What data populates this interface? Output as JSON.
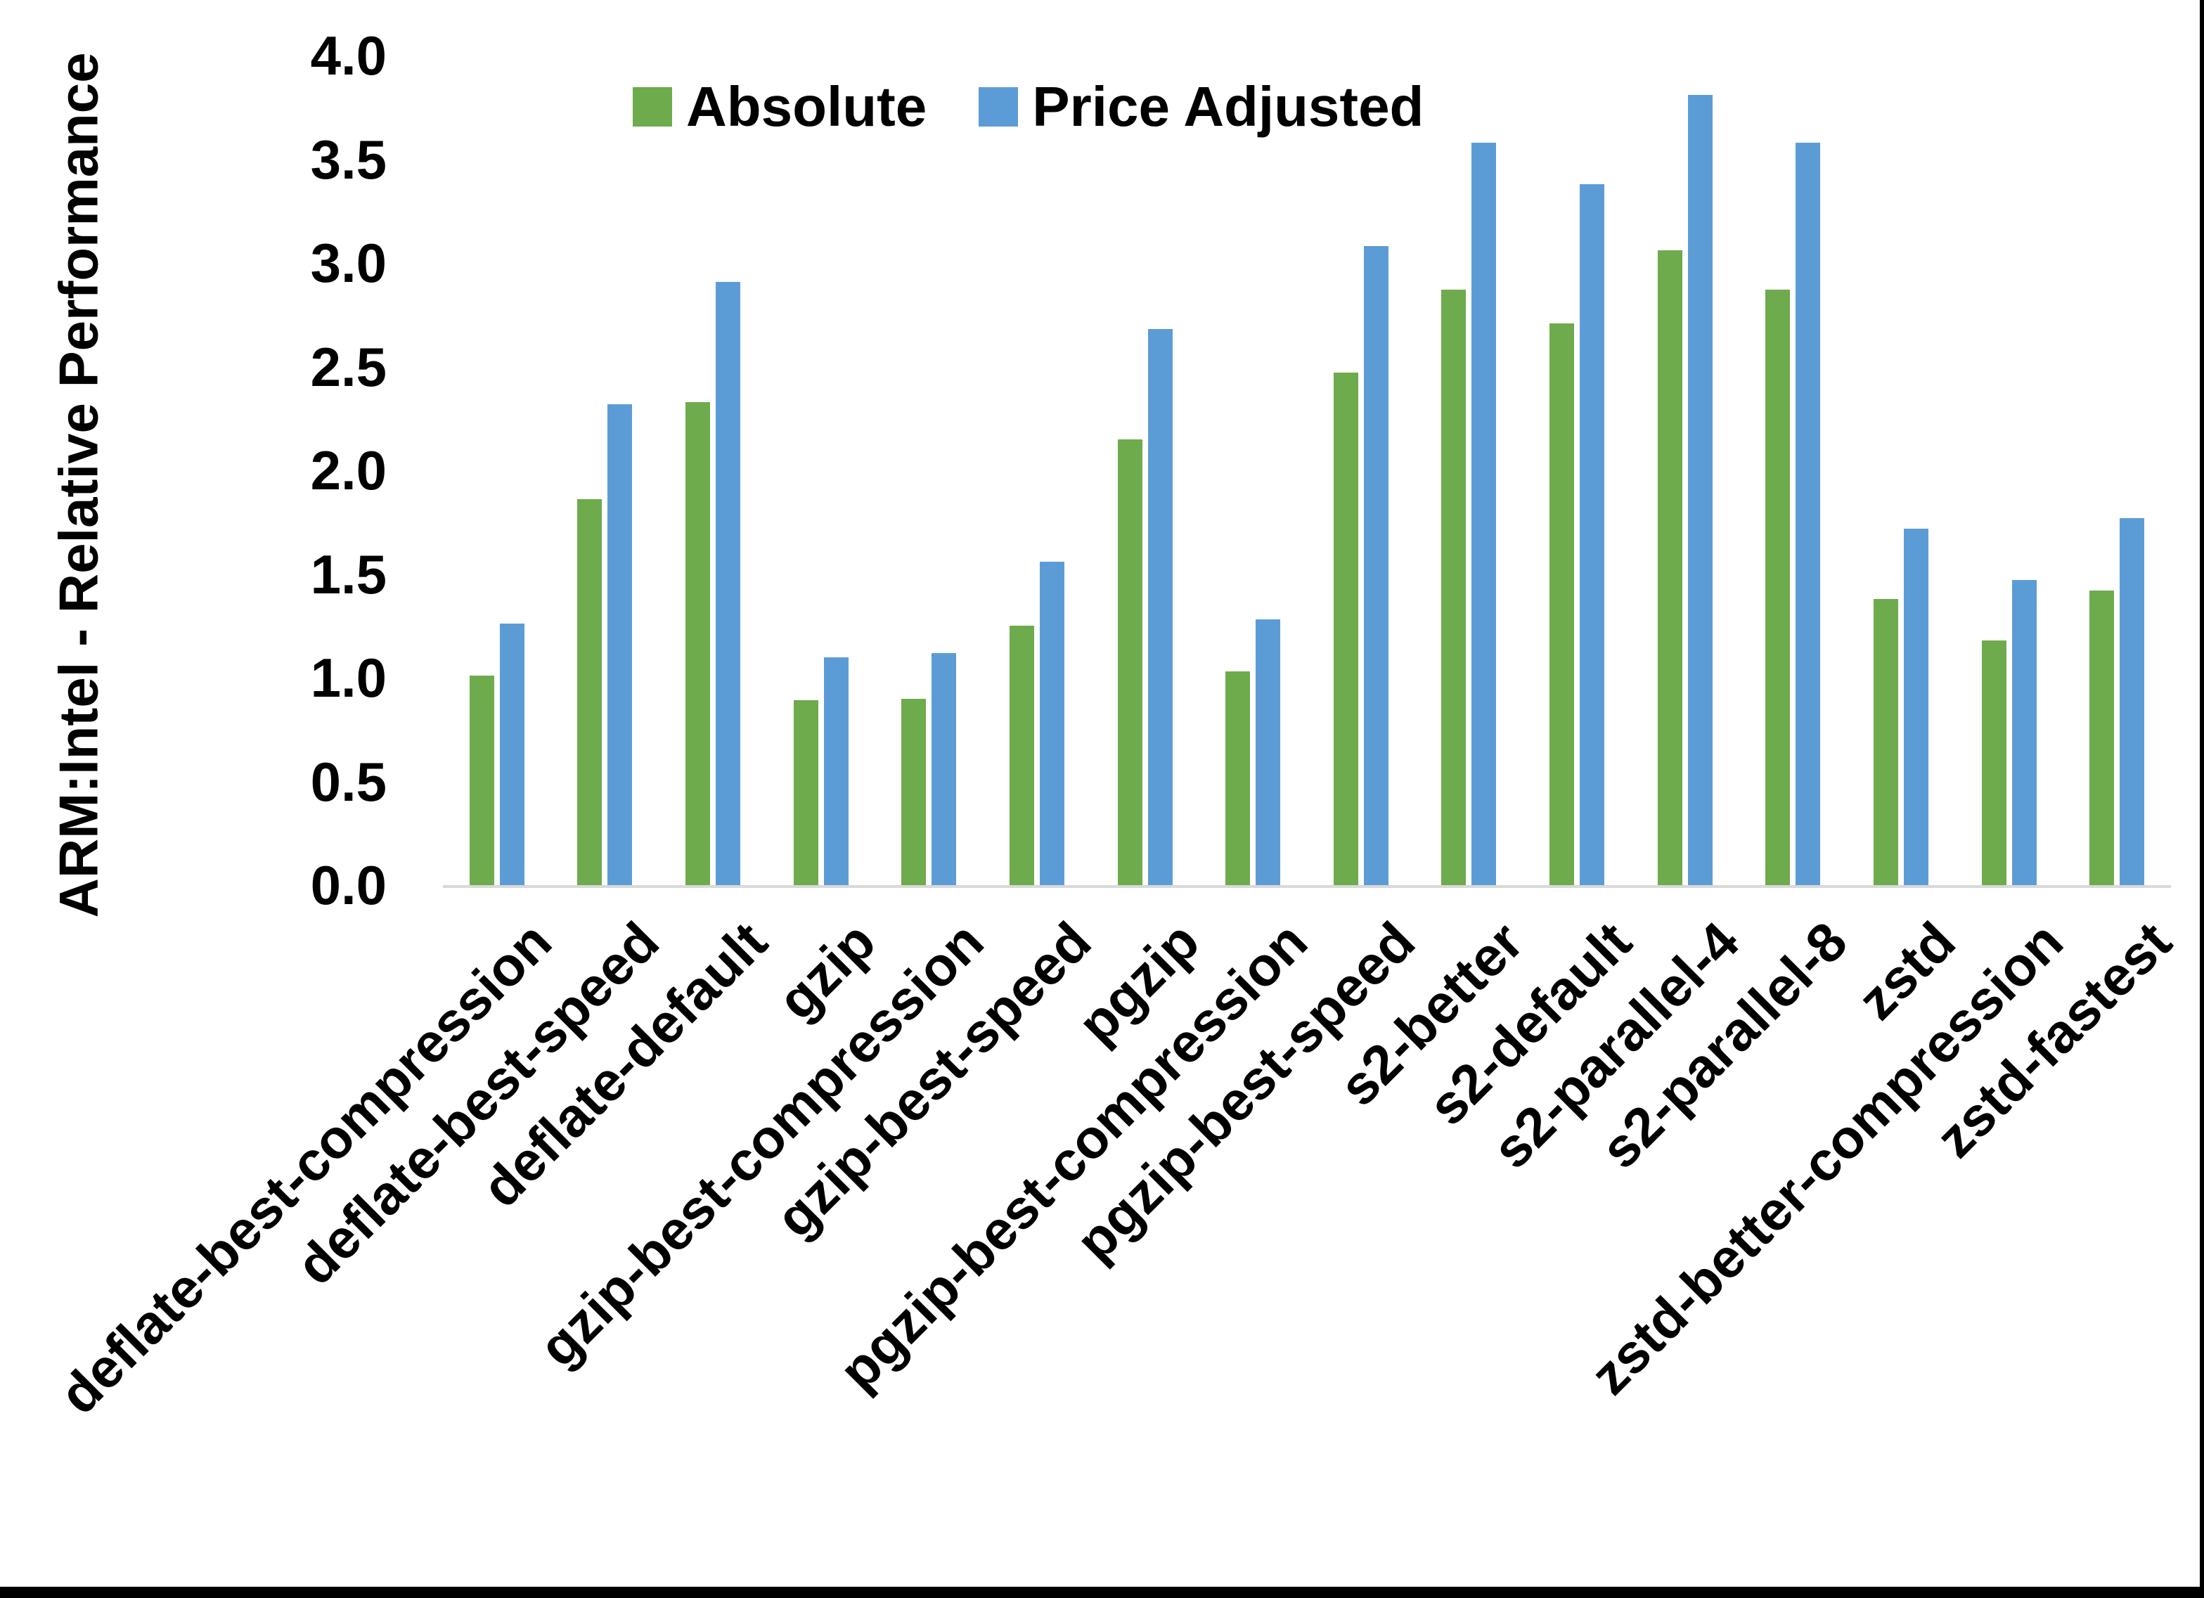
{
  "chart_data": {
    "type": "bar",
    "title": "",
    "ylabel": "ARM:Intel - Relative Performance",
    "xlabel": "",
    "ylim": [
      0.0,
      4.0
    ],
    "y_tick_step": 0.5,
    "y_ticks": [
      "0.0",
      "0.5",
      "1.0",
      "1.5",
      "2.0",
      "2.5",
      "3.0",
      "3.5",
      "4.0"
    ],
    "grid": false,
    "legend_position": "top-center",
    "axis_line_color": "#d9d9d9",
    "categories": [
      "deflate-best-compression",
      "deflate-best-speed",
      "deflate-default",
      "gzip",
      "gzip-best-compression",
      "gzip-best-speed",
      "pgzip",
      "pgzip-best-compression",
      "pgzip-best-speed",
      "s2-better",
      "s2-default",
      "s2-parallel-4",
      "s2-parallel-8",
      "zstd",
      "zstd-better-compression",
      "zstd-fastest"
    ],
    "series": [
      {
        "name": "Absolute",
        "color": "#6DAB4C",
        "values": [
          1.01,
          1.86,
          2.33,
          0.89,
          0.9,
          1.25,
          2.15,
          1.03,
          2.47,
          2.87,
          2.71,
          3.06,
          2.87,
          1.38,
          1.18,
          1.42
        ]
      },
      {
        "name": "Price Adjusted",
        "color": "#5C9CD6",
        "values": [
          1.26,
          2.32,
          2.91,
          1.1,
          1.12,
          1.56,
          2.68,
          1.28,
          3.08,
          3.58,
          3.38,
          3.81,
          3.58,
          1.72,
          1.47,
          1.77
        ]
      }
    ]
  }
}
